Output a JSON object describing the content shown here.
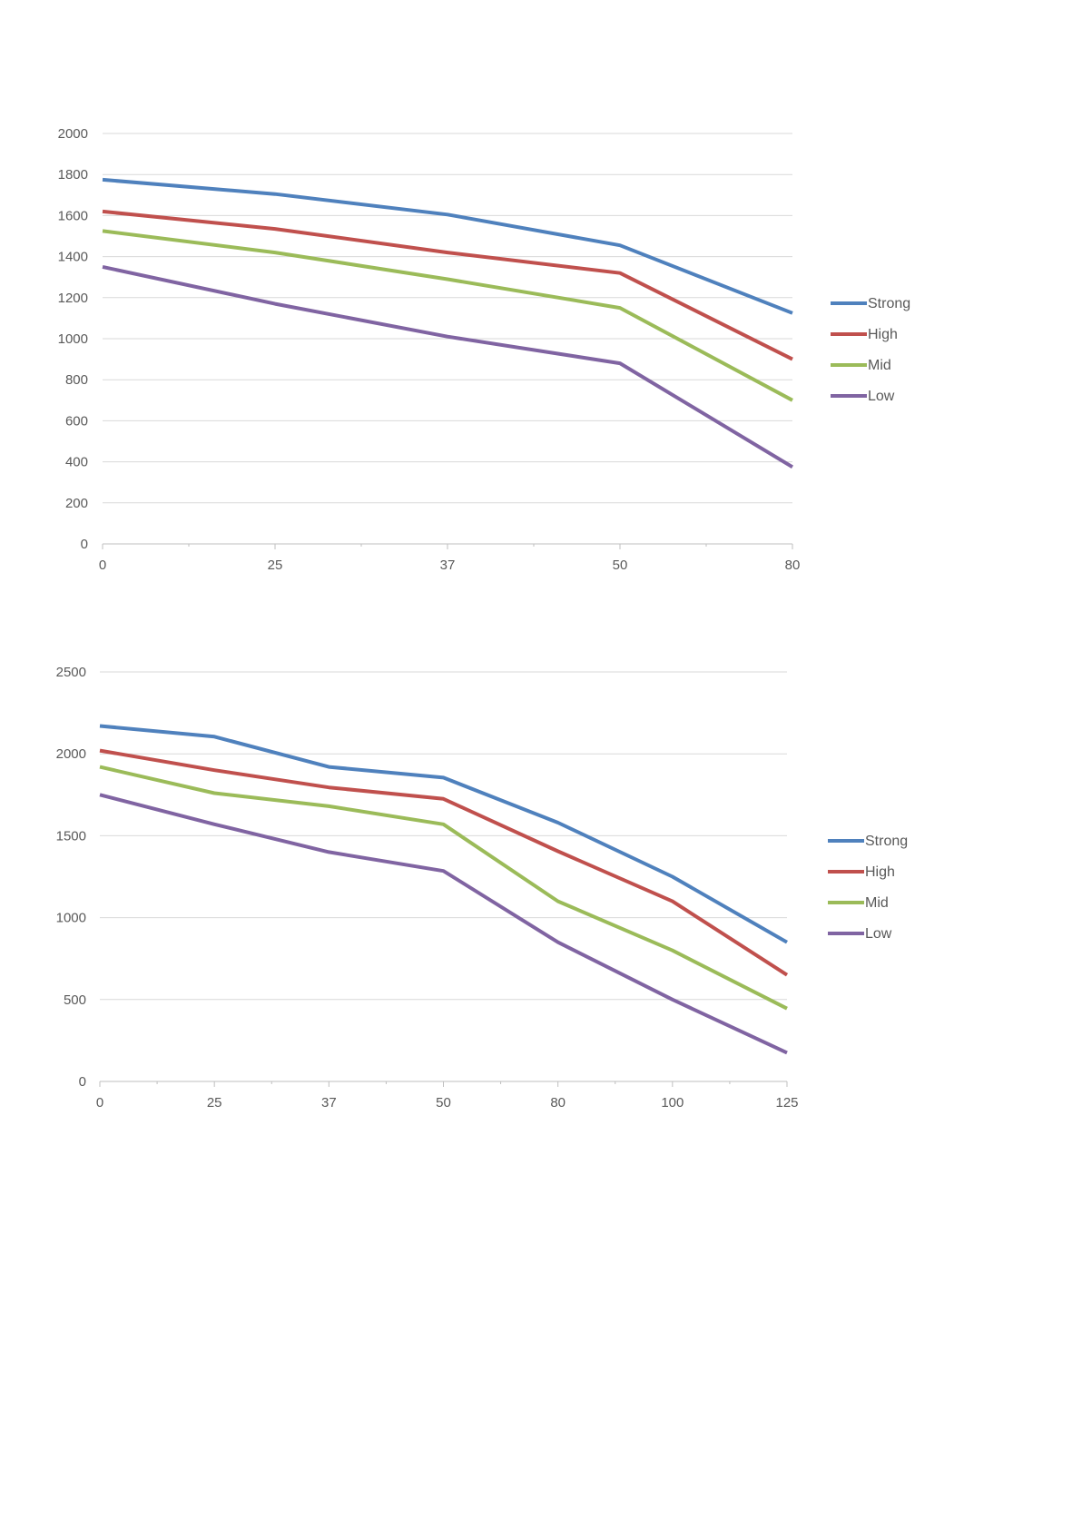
{
  "chart_data": [
    {
      "type": "line",
      "categories": [
        "0",
        "25",
        "37",
        "50",
        "80"
      ],
      "ylim": [
        0,
        2000
      ],
      "yticks": [
        0,
        200,
        400,
        600,
        800,
        1000,
        1200,
        1400,
        1600,
        1800,
        2000
      ],
      "grid": true,
      "legend_position": "right",
      "series": [
        {
          "name": "Strong",
          "color": "#4f81bd",
          "values": [
            1775,
            1705,
            1605,
            1455,
            1125
          ]
        },
        {
          "name": "High",
          "color": "#c0504d",
          "values": [
            1620,
            1535,
            1420,
            1320,
            900
          ]
        },
        {
          "name": "Mid",
          "color": "#9bbb59",
          "values": [
            1525,
            1420,
            1290,
            1150,
            700
          ]
        },
        {
          "name": "Low",
          "color": "#8064a2",
          "values": [
            1350,
            1170,
            1010,
            880,
            375
          ]
        }
      ]
    },
    {
      "type": "line",
      "categories": [
        "0",
        "25",
        "37",
        "50",
        "80",
        "100",
        "125"
      ],
      "ylim": [
        0,
        2500
      ],
      "yticks": [
        0,
        500,
        1000,
        1500,
        2000,
        2500
      ],
      "grid": true,
      "legend_position": "right",
      "series": [
        {
          "name": "Strong",
          "color": "#4f81bd",
          "values": [
            2170,
            2105,
            1920,
            1855,
            1580,
            1250,
            850
          ]
        },
        {
          "name": "High",
          "color": "#c0504d",
          "values": [
            2020,
            1900,
            1795,
            1725,
            1405,
            1100,
            650
          ]
        },
        {
          "name": "Mid",
          "color": "#9bbb59",
          "values": [
            1920,
            1760,
            1680,
            1570,
            1100,
            800,
            445
          ]
        },
        {
          "name": "Low",
          "color": "#8064a2",
          "values": [
            1750,
            1570,
            1400,
            1285,
            850,
            500,
            175
          ]
        }
      ]
    }
  ]
}
